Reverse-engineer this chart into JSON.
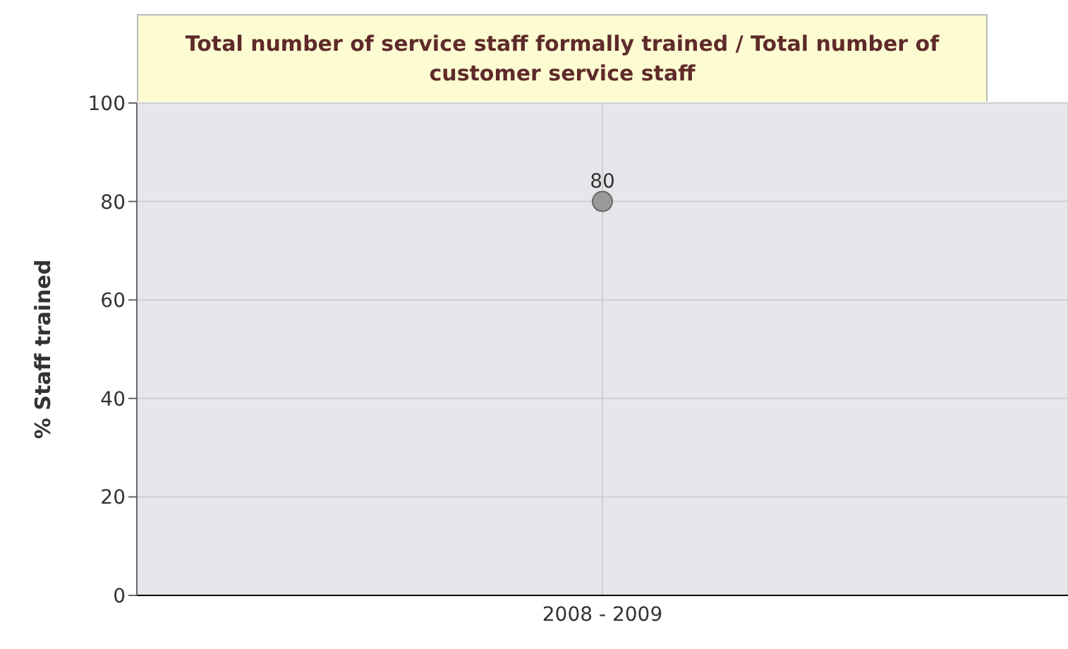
{
  "chart_data": {
    "type": "line",
    "title": "Total number of service staff formally trained / Total number of customer service staff",
    "ylabel": "% Staff trained",
    "categories": [
      "2008 - 2009"
    ],
    "series": [
      {
        "color": "#999999",
        "values": [
          80
        ]
      }
    ],
    "ylim": [
      0,
      100
    ],
    "yticks": [
      0,
      20,
      40,
      60,
      80,
      100
    ],
    "grid": true,
    "marker": "circle",
    "data_labels": true
  }
}
